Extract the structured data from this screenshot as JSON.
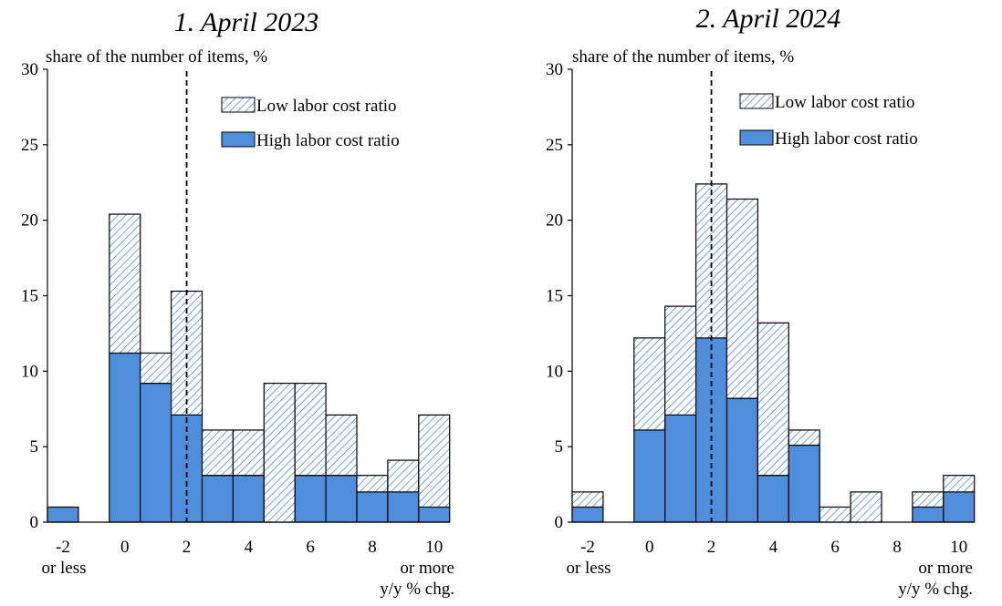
{
  "colors": {
    "high": "#4f8edb",
    "low_hatch": "#4f8edb",
    "stroke": "#000000"
  },
  "chart_data": [
    {
      "type": "bar",
      "stacked": true,
      "title": "1. April 2023",
      "ylabel": "share of the number of items, %",
      "xlabel": "y/y % chg.",
      "ylim": [
        0,
        30
      ],
      "yticks": [
        "0",
        "5",
        "10",
        "15",
        "20",
        "25",
        "30"
      ],
      "xtick_labels": [
        "-2",
        "0",
        "2",
        "4",
        "6",
        "8",
        "10"
      ],
      "xtick_sublabels": {
        "first": "or less",
        "last": "or more"
      },
      "reference_line_x": 2,
      "categories": [
        "-2 or less",
        "-1.5",
        "0",
        "1",
        "2",
        "3",
        "4",
        "5",
        "6",
        "7",
        "8",
        "9",
        "10 or more"
      ],
      "series": [
        {
          "name": "High labor cost ratio",
          "values": [
            1,
            0,
            11.2,
            9.2,
            7.1,
            3.1,
            3.1,
            0,
            3.1,
            3.1,
            2,
            2,
            1
          ]
        },
        {
          "name": "Low labor cost ratio",
          "values": [
            0,
            0,
            9.2,
            2,
            8.2,
            3,
            3,
            9.2,
            6.1,
            4,
            1.1,
            2.1,
            6.1
          ]
        }
      ],
      "legend_position": "top-right"
    },
    {
      "type": "bar",
      "stacked": true,
      "title": "2. April 2024",
      "ylabel": "share of the number of items, %",
      "xlabel": "y/y % chg.",
      "ylim": [
        0,
        30
      ],
      "yticks": [
        "0",
        "5",
        "10",
        "15",
        "20",
        "25",
        "30"
      ],
      "xtick_labels": [
        "-2",
        "0",
        "2",
        "4",
        "6",
        "8",
        "10"
      ],
      "xtick_sublabels": {
        "first": "or less",
        "last": "or more"
      },
      "reference_line_x": 2,
      "categories": [
        "-2 or less",
        "-1.5",
        "0",
        "1",
        "2",
        "3",
        "4",
        "5",
        "6",
        "7",
        "8",
        "9",
        "10 or more"
      ],
      "series": [
        {
          "name": "High labor cost ratio",
          "values": [
            1,
            0,
            6.1,
            7.1,
            12.2,
            8.2,
            3.1,
            5.1,
            0,
            0,
            0,
            1,
            2
          ]
        },
        {
          "name": "Low labor cost ratio",
          "values": [
            1,
            0,
            6.1,
            7.2,
            10.2,
            13.2,
            10.1,
            1,
            1,
            2,
            0,
            1,
            1.1
          ]
        }
      ],
      "legend_position": "top-right"
    }
  ]
}
